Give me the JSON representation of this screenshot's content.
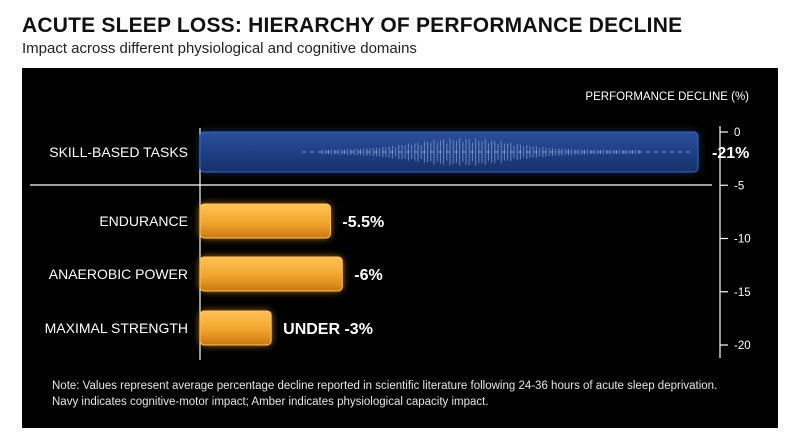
{
  "title": "ACUTE SLEEP LOSS: HIERARCHY OF PERFORMANCE DECLINE",
  "subtitle": "Impact across different physiological and cognitive domains",
  "note": {
    "line1": "Note: Values represent average percentage decline reported in scientific literature following 24-36 hours of acute sleep deprivation.",
    "line2": "Navy indicates cognitive-motor impact; Amber indicates physiological capacity impact."
  },
  "colors": {
    "background": "#000000",
    "navy": "#1f3f86",
    "navy_edge": "#3b67c4",
    "amber": "#f2a52b",
    "amber_edge": "#ffc55a",
    "text": "#ffffff"
  },
  "chart_data": {
    "type": "bar",
    "orientation": "horizontal",
    "title": "",
    "axis_label": "PERFORMANCE DECLINE (%)",
    "axis_ticks": [
      0,
      -5,
      -10,
      -15,
      -20
    ],
    "axis_range": [
      0,
      -21
    ],
    "categories": [
      "SKILL-BASED TASKS",
      "ENDURANCE",
      "ANAEROBIC POWER",
      "MAXIMAL STRENGTH"
    ],
    "values": [
      -21,
      -5.5,
      -6,
      -3
    ],
    "value_labels": [
      "-21%",
      "-5.5%",
      "-6%",
      "UNDER -3%"
    ],
    "bar_colors": [
      "navy",
      "amber",
      "amber",
      "amber"
    ],
    "separator_after": "SKILL-BASED TASKS",
    "grid": false
  }
}
